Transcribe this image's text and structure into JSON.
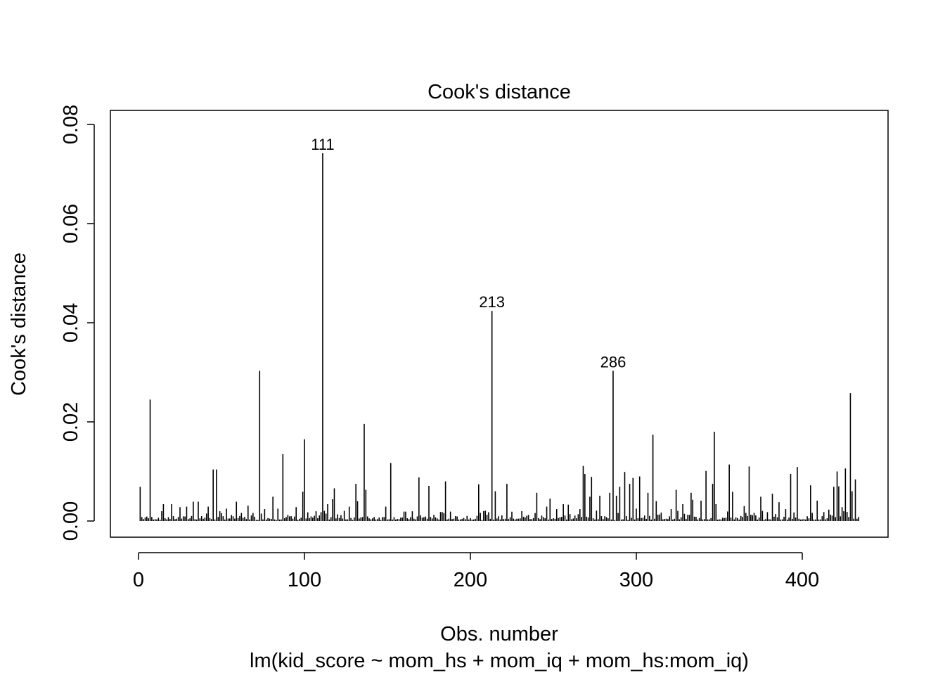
{
  "chart_data": {
    "type": "bar",
    "title": "Cook's distance",
    "xlabel": "Obs. number",
    "sublabel": "lm(kid_score ~ mom_hs + mom_iq + mom_hs:mom_iq)",
    "ylabel": "Cook's distance",
    "xlim": [
      0,
      434
    ],
    "ylim": [
      0,
      0.08
    ],
    "x_ticks": [
      "0",
      "100",
      "200",
      "300",
      "400"
    ],
    "y_ticks": [
      "0.00",
      "0.02",
      "0.04",
      "0.06",
      "0.08"
    ],
    "grid": false,
    "annotations": [
      {
        "label": "111",
        "x": 111,
        "y": 0.0742
      },
      {
        "label": "213",
        "x": 213,
        "y": 0.0424
      },
      {
        "label": "286",
        "x": 286,
        "y": 0.0303
      }
    ],
    "points": [
      [
        1,
        0.0069
      ],
      [
        7,
        0.0245
      ],
      [
        15,
        0.0034
      ],
      [
        20,
        0.0034
      ],
      [
        25,
        0.0028
      ],
      [
        29,
        0.0029
      ],
      [
        33,
        0.0039
      ],
      [
        36,
        0.0039
      ],
      [
        42,
        0.0029
      ],
      [
        45,
        0.0104
      ],
      [
        47,
        0.0104
      ],
      [
        53,
        0.0025
      ],
      [
        59,
        0.0039
      ],
      [
        66,
        0.0031
      ],
      [
        73,
        0.0303
      ],
      [
        76,
        0.0024
      ],
      [
        81,
        0.0049
      ],
      [
        84,
        0.0025
      ],
      [
        87,
        0.0135
      ],
      [
        95,
        0.0028
      ],
      [
        99,
        0.0059
      ],
      [
        100,
        0.0165
      ],
      [
        111,
        0.0742
      ],
      [
        114,
        0.0034
      ],
      [
        117,
        0.0044
      ],
      [
        118,
        0.0066
      ],
      [
        127,
        0.0029
      ],
      [
        131,
        0.0075
      ],
      [
        132,
        0.004
      ],
      [
        136,
        0.0196
      ],
      [
        137,
        0.0063
      ],
      [
        149,
        0.0029
      ],
      [
        152,
        0.0117
      ],
      [
        169,
        0.0088
      ],
      [
        175,
        0.0071
      ],
      [
        185,
        0.008
      ],
      [
        188,
        0.0019
      ],
      [
        205,
        0.0074
      ],
      [
        208,
        0.002
      ],
      [
        213,
        0.0424
      ],
      [
        215,
        0.006
      ],
      [
        222,
        0.0075
      ],
      [
        231,
        0.002
      ],
      [
        240,
        0.0057
      ],
      [
        246,
        0.0029
      ],
      [
        248,
        0.0045
      ],
      [
        252,
        0.0024
      ],
      [
        256,
        0.0034
      ],
      [
        259,
        0.0033
      ],
      [
        266,
        0.0024
      ],
      [
        268,
        0.0111
      ],
      [
        269,
        0.0095
      ],
      [
        272,
        0.0049
      ],
      [
        273,
        0.0089
      ],
      [
        276,
        0.0021
      ],
      [
        278,
        0.0051
      ],
      [
        284,
        0.0057
      ],
      [
        286,
        0.0303
      ],
      [
        288,
        0.0051
      ],
      [
        290,
        0.0069
      ],
      [
        293,
        0.0099
      ],
      [
        296,
        0.0075
      ],
      [
        298,
        0.0087
      ],
      [
        300,
        0.0025
      ],
      [
        302,
        0.009
      ],
      [
        307,
        0.0057
      ],
      [
        310,
        0.0174
      ],
      [
        312,
        0.004
      ],
      [
        321,
        0.0024
      ],
      [
        324,
        0.0063
      ],
      [
        328,
        0.0034
      ],
      [
        333,
        0.0057
      ],
      [
        334,
        0.0043
      ],
      [
        339,
        0.0041
      ],
      [
        342,
        0.0101
      ],
      [
        346,
        0.0075
      ],
      [
        347,
        0.018
      ],
      [
        348,
        0.0034
      ],
      [
        356,
        0.0114
      ],
      [
        358,
        0.0059
      ],
      [
        365,
        0.003
      ],
      [
        368,
        0.011
      ],
      [
        375,
        0.0049
      ],
      [
        382,
        0.0055
      ],
      [
        386,
        0.0038
      ],
      [
        390,
        0.0024
      ],
      [
        393,
        0.0095
      ],
      [
        397,
        0.0109
      ],
      [
        405,
        0.0072
      ],
      [
        409,
        0.0041
      ],
      [
        416,
        0.0023
      ],
      [
        419,
        0.0069
      ],
      [
        421,
        0.01
      ],
      [
        422,
        0.007
      ],
      [
        424,
        0.0028
      ],
      [
        426,
        0.0106
      ],
      [
        429,
        0.0258
      ],
      [
        430,
        0.006
      ],
      [
        432,
        0.0084
      ]
    ],
    "baseline_note_free": true
  }
}
